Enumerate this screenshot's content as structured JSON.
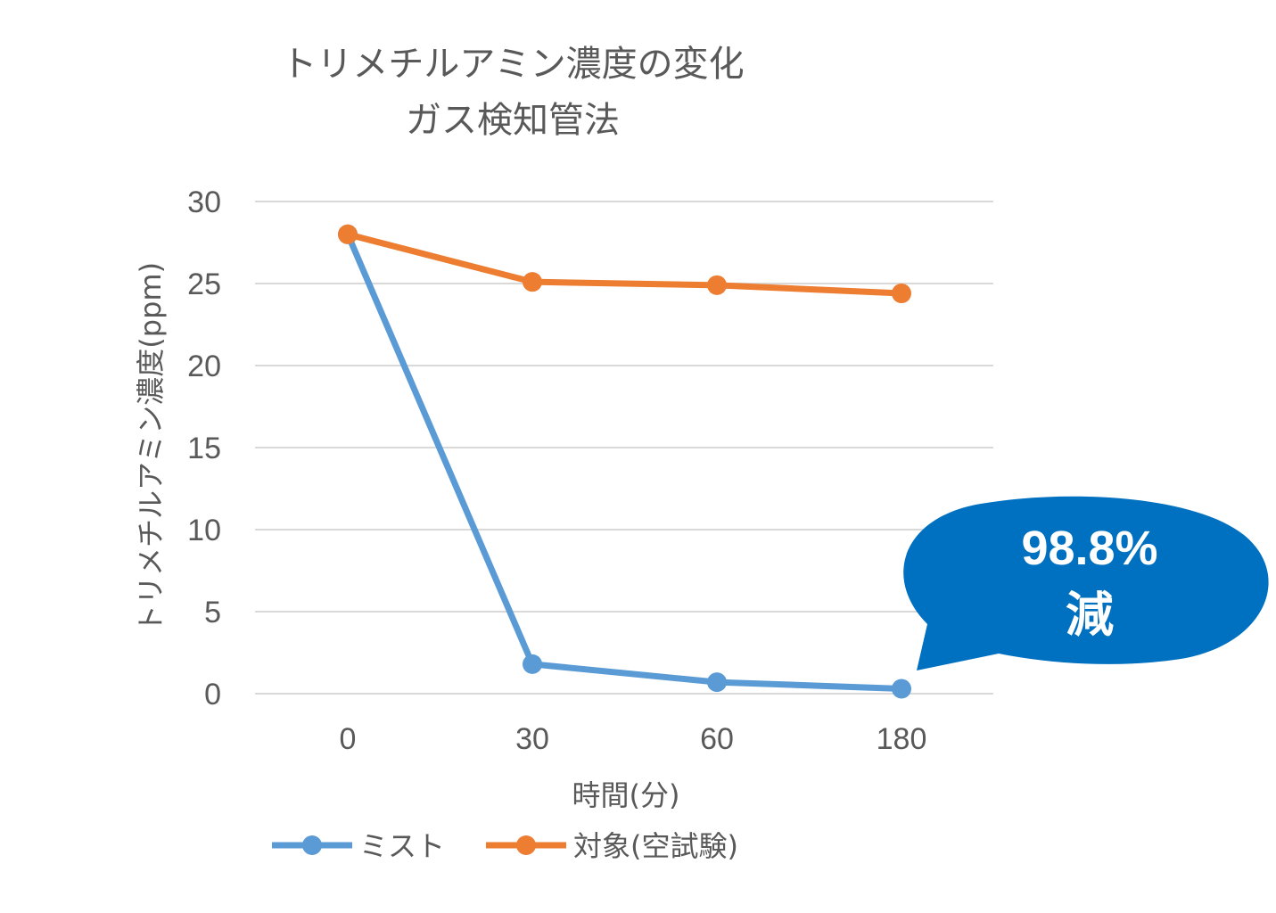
{
  "chart_data": {
    "type": "line",
    "title": [
      "トリメチルアミン濃度の変化",
      "ガス検知管法"
    ],
    "xlabel": "時間(分)",
    "ylabel": "トリメチルアミン濃度(ppm)",
    "categories": [
      "0",
      "30",
      "60",
      "180"
    ],
    "ylim": [
      0,
      30
    ],
    "yticks": [
      0,
      5,
      10,
      15,
      20,
      25,
      30
    ],
    "grid": true,
    "legend": "bottom",
    "series": [
      {
        "name": "ミスト",
        "color": "#5B9BD5",
        "values": [
          28.0,
          1.8,
          0.7,
          0.3
        ]
      },
      {
        "name": "対象(空試験)",
        "color": "#ED7D31",
        "values": [
          28.0,
          25.1,
          24.9,
          24.4
        ]
      }
    ],
    "annotation": {
      "lines": [
        "98.8%",
        "減"
      ],
      "color": "#0070C0"
    }
  }
}
